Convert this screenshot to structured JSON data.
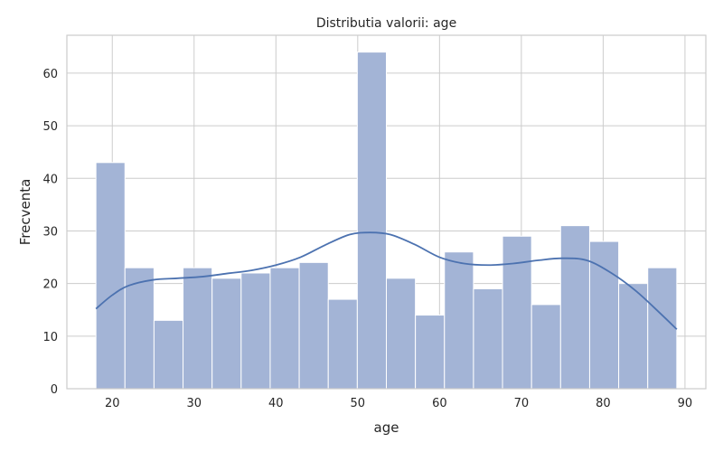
{
  "chart_data": {
    "type": "bar",
    "title": "Distributia valorii: age",
    "xlabel": "age",
    "ylabel": "Frecventa",
    "xlim": [
      14.45,
      92.55
    ],
    "ylim": [
      0,
      67.2
    ],
    "xticks": [
      20,
      30,
      40,
      50,
      60,
      70,
      80,
      90
    ],
    "yticks": [
      0,
      10,
      20,
      30,
      40,
      50,
      60
    ],
    "grid": true,
    "bin_start": 18,
    "bin_width": 3.55,
    "values": [
      43,
      23,
      13,
      23,
      21,
      22,
      23,
      24,
      17,
      64,
      21,
      14,
      26,
      19,
      29,
      16,
      31,
      28,
      20,
      23
    ],
    "bar_color": "#a3b4d6",
    "kde_color": "#4c72b0",
    "kde": {
      "x": [
        18,
        20,
        22,
        25,
        28,
        31,
        34,
        37,
        40,
        43,
        46,
        49,
        51.5,
        54,
        57,
        60,
        63,
        66,
        69,
        72,
        75,
        78,
        81,
        84,
        87,
        89
      ],
      "y": [
        15.2,
        17.8,
        19.6,
        20.7,
        21.0,
        21.3,
        21.9,
        22.5,
        23.5,
        25.0,
        27.3,
        29.3,
        29.7,
        29.3,
        27.4,
        25.0,
        23.8,
        23.5,
        23.8,
        24.4,
        24.8,
        24.4,
        22.0,
        18.6,
        14.3,
        11.3
      ]
    }
  }
}
